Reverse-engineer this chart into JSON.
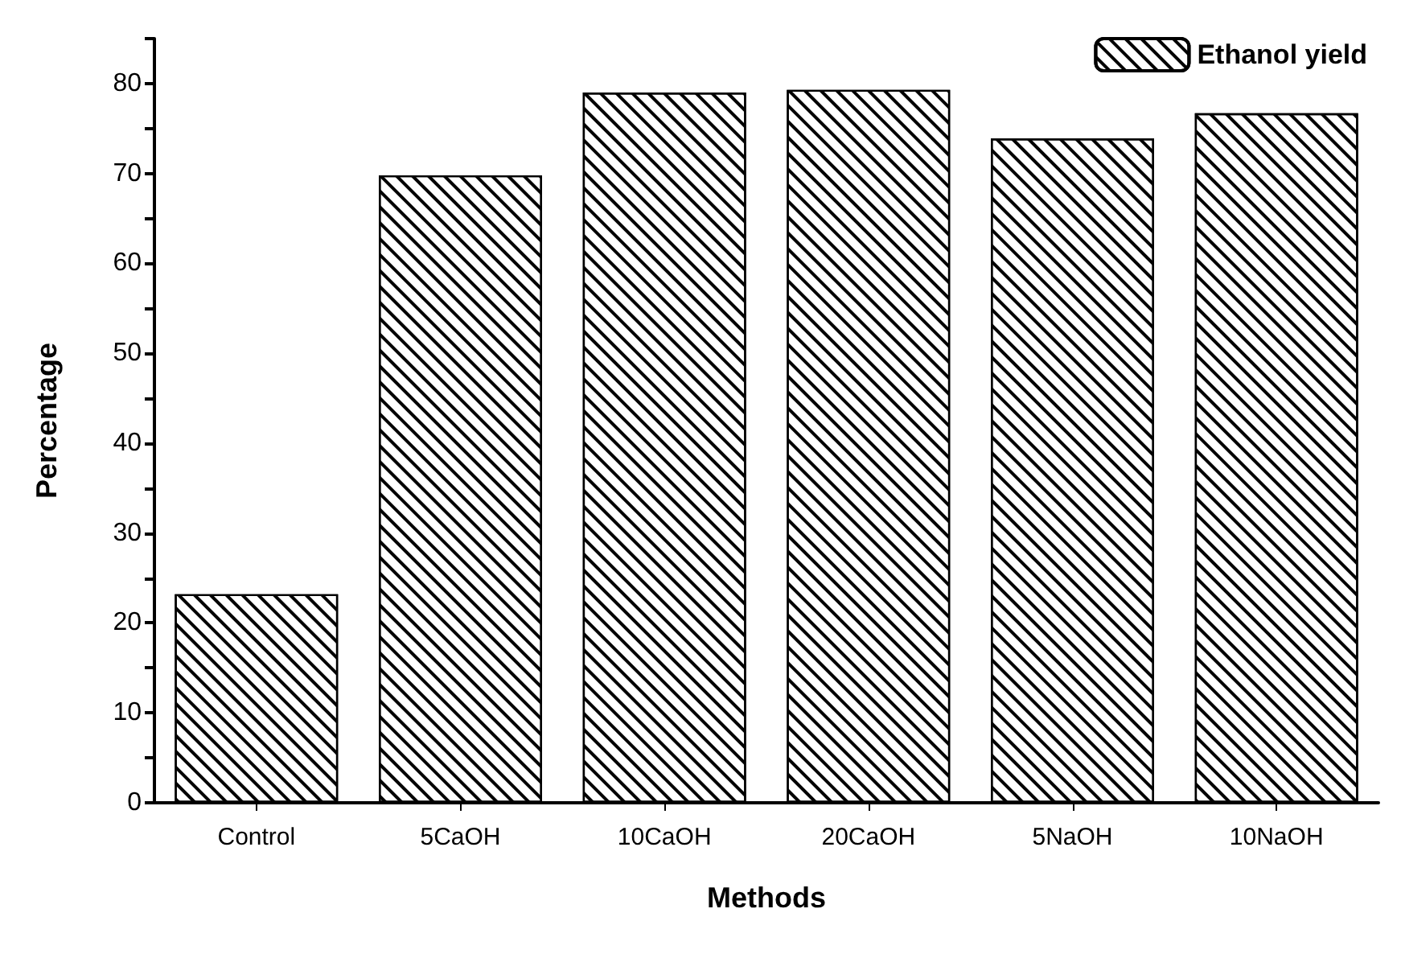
{
  "chart_data": {
    "type": "bar",
    "xlabel": "Methods",
    "ylabel": "Percentage",
    "categories": [
      "Control",
      "5CaOH",
      "10CaOH",
      "20CaOH",
      "5NaOH",
      "10NaOH"
    ],
    "series": [
      {
        "name": "Ethanol yield",
        "color": "#000000",
        "values": [
          23.2,
          69.8,
          79.0,
          79.3,
          73.9,
          76.7
        ]
      }
    ],
    "ylim": [
      0,
      85
    ],
    "yticks": [
      0,
      {
        "value": 5,
        "label": null
      },
      10,
      {
        "value": 15,
        "label": null
      },
      20,
      {
        "value": 25,
        "label": null
      },
      30,
      {
        "value": 35,
        "label": null
      },
      40,
      {
        "value": 45,
        "label": null
      },
      50,
      {
        "value": 55,
        "label": null
      },
      60,
      {
        "value": 65,
        "label": null
      },
      70,
      {
        "value": 75,
        "label": null
      },
      80,
      {
        "value": 85,
        "label": null
      }
    ],
    "grid": false,
    "legend": "top right"
  }
}
